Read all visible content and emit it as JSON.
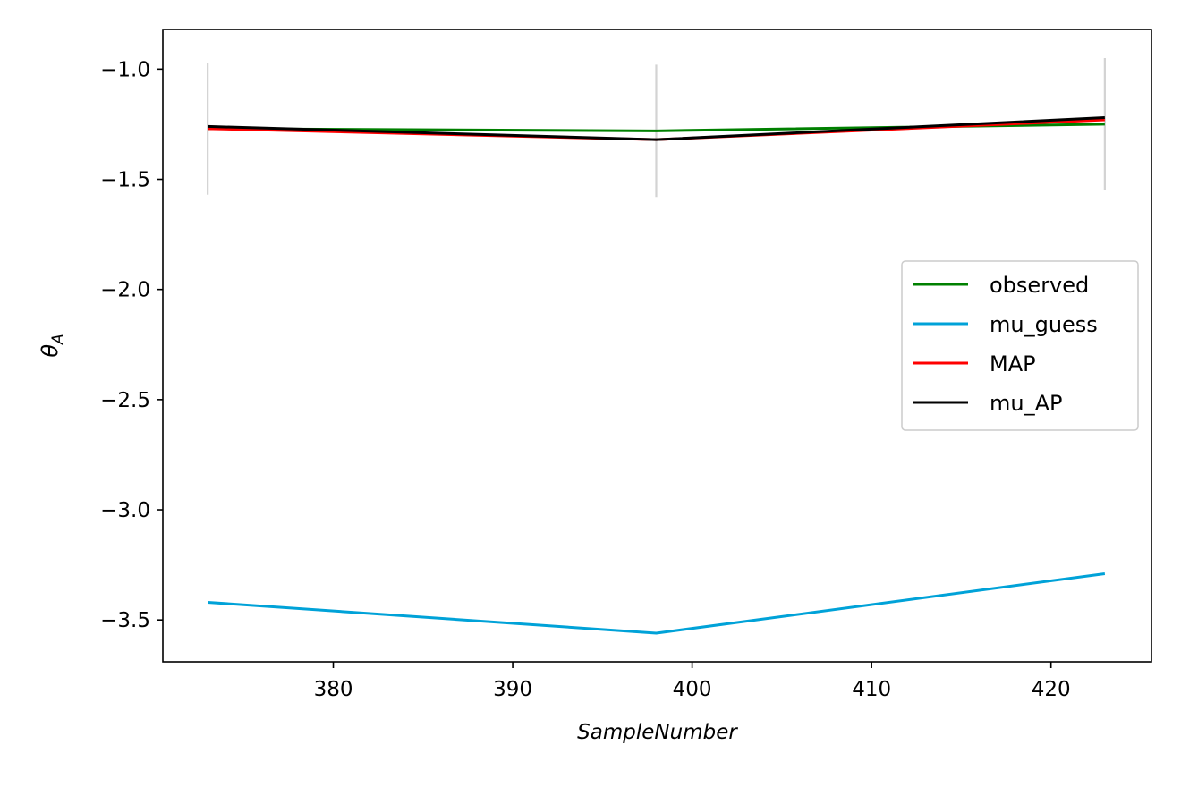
{
  "chart_data": {
    "type": "line",
    "title": "",
    "xlabel": "SampleNumber",
    "ylabel_symbol": "θ",
    "ylabel_subscript": "A",
    "xlim": [
      370.5,
      425.6
    ],
    "ylim": [
      -3.69,
      -0.82
    ],
    "x_ticks": [
      380,
      390,
      400,
      410,
      420
    ],
    "y_ticks": [
      -1.0,
      -1.5,
      -2.0,
      -2.5,
      -3.0,
      -3.5
    ],
    "x_tick_labels": [
      "380",
      "390",
      "400",
      "410",
      "420"
    ],
    "y_tick_labels": [
      "−1.0",
      "−1.5",
      "−2.0",
      "−2.5",
      "−3.0",
      "−3.5"
    ],
    "legend_position": "center-right",
    "error_bars": {
      "color": "#d3d3d3",
      "points": [
        {
          "x": 373,
          "low": -1.57,
          "high": -0.97
        },
        {
          "x": 398,
          "low": -1.58,
          "high": -0.98
        },
        {
          "x": 423,
          "low": -1.55,
          "high": -0.95
        }
      ]
    },
    "series": [
      {
        "name": "observed",
        "color": "#008000",
        "x": [
          373,
          398,
          423
        ],
        "y": [
          -1.27,
          -1.28,
          -1.25
        ]
      },
      {
        "name": "mu_guess",
        "color": "#00a2d8",
        "x": [
          373,
          398,
          423
        ],
        "y": [
          -3.42,
          -3.56,
          -3.29
        ]
      },
      {
        "name": "MAP",
        "color": "#ff0000",
        "x": [
          373,
          398,
          423
        ],
        "y": [
          -1.27,
          -1.32,
          -1.23
        ]
      },
      {
        "name": "mu_AP",
        "color": "#000000",
        "x": [
          373,
          398,
          423
        ],
        "y": [
          -1.26,
          -1.32,
          -1.22
        ]
      }
    ]
  }
}
